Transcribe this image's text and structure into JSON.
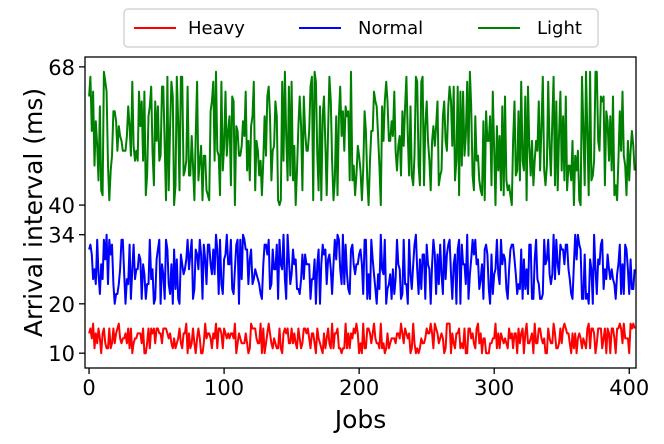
{
  "chart_data": {
    "type": "line",
    "xlabel": "Jobs",
    "ylabel": "Arrival interval (ms)",
    "xlim": [
      -3,
      405
    ],
    "ylim": [
      7,
      70
    ],
    "xticks": [
      0,
      100,
      200,
      300,
      400
    ],
    "yticks": [
      10,
      20,
      34,
      40,
      68
    ],
    "grid": false,
    "legend_position": "top-center",
    "series": [
      {
        "name": "Heavy",
        "color": "#ff0000",
        "range": [
          10,
          16
        ],
        "seed": 11,
        "start": [
          14,
          15,
          13,
          16,
          11,
          14,
          12,
          15,
          13,
          10
        ]
      },
      {
        "name": "Normal",
        "color": "#0000ff",
        "range": [
          20,
          34
        ],
        "seed": 29,
        "start": [
          31,
          32,
          30,
          25,
          27,
          24,
          33,
          26,
          22,
          28
        ]
      },
      {
        "name": "Light",
        "color": "#008000",
        "range": [
          40,
          67
        ],
        "seed": 47,
        "start": [
          62,
          66,
          55,
          63,
          48,
          57,
          52,
          45,
          60,
          43
        ]
      }
    ],
    "points_per_series": 405
  }
}
